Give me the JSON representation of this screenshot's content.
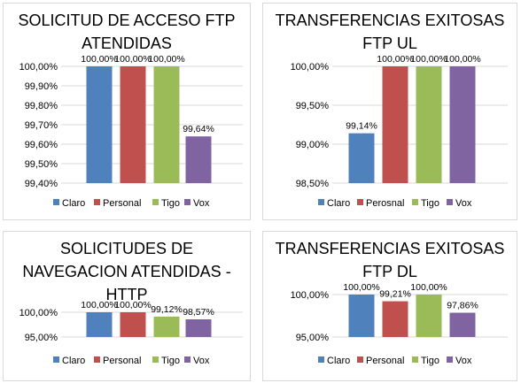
{
  "colors": {
    "Claro": "#4F81BD",
    "Personal": "#C0504D",
    "Tigo": "#9BBB59",
    "Vox": "#8064A2"
  },
  "chart_data": [
    {
      "type": "bar",
      "title": "SOLICITUD DE ACCESO FTP\nATENDIDAS",
      "categories": [
        "Claro",
        "Personal",
        "Tigo",
        "Vox"
      ],
      "values": [
        100.0,
        100.0,
        100.0,
        99.64
      ],
      "value_labels": [
        "100,00%",
        "100,00%",
        "100,00%",
        "99,64%"
      ],
      "yticks": [
        "99,40%",
        "99,50%",
        "99,60%",
        "99,70%",
        "99,80%",
        "99,90%",
        "100,00%"
      ],
      "ylim": [
        99.4,
        100.0
      ],
      "legend": [
        "Claro",
        "Personal",
        "Tigo",
        "Vox"
      ],
      "legend_position": "bottom",
      "grid": true
    },
    {
      "type": "bar",
      "title": "TRANSFERENCIAS EXITOSAS\nFTP UL",
      "categories": [
        "Claro",
        "Perosnal",
        "Tigo",
        "Vox"
      ],
      "values": [
        99.14,
        100.0,
        100.0,
        100.0
      ],
      "value_labels": [
        "99,14%",
        "100,00%",
        "100,00%",
        "100,00%"
      ],
      "yticks": [
        "98,50%",
        "99,00%",
        "99,50%",
        "100,00%"
      ],
      "ylim": [
        98.5,
        100.0
      ],
      "legend": [
        "Claro",
        "Perosnal",
        "Tigo",
        "Vox"
      ],
      "legend_position": "bottom",
      "grid": true
    },
    {
      "type": "bar",
      "title": "SOLICITUDES DE\nNAVEGACION ATENDIDAS -\nHTTP",
      "categories": [
        "Claro",
        "Personal",
        "Tigo",
        "Vox"
      ],
      "values": [
        100.0,
        100.0,
        99.12,
        98.57
      ],
      "value_labels": [
        "100,00%",
        "100,00%",
        "99,12%",
        "98,57%"
      ],
      "yticks": [
        "95,00%",
        "100,00%"
      ],
      "ylim": [
        95.0,
        100.0
      ],
      "legend": [
        "Claro",
        "Personal",
        "Tigo",
        "Vox"
      ],
      "legend_position": "bottom",
      "grid": true
    },
    {
      "type": "bar",
      "title": "TRANSFERENCIAS EXITOSAS\nFTP DL",
      "categories": [
        "Claro",
        "Personal",
        "Tigo",
        "Vox"
      ],
      "values": [
        100.0,
        99.21,
        100.0,
        97.86
      ],
      "value_labels": [
        "100,00%",
        "99,21%",
        "100,00%",
        "97,86%"
      ],
      "yticks": [
        "95,00%",
        "100,00%"
      ],
      "ylim": [
        95.0,
        100.0
      ],
      "legend": [
        "Claro",
        "Personal",
        "Tigo",
        "Vox"
      ],
      "legend_position": "bottom",
      "grid": true
    }
  ]
}
